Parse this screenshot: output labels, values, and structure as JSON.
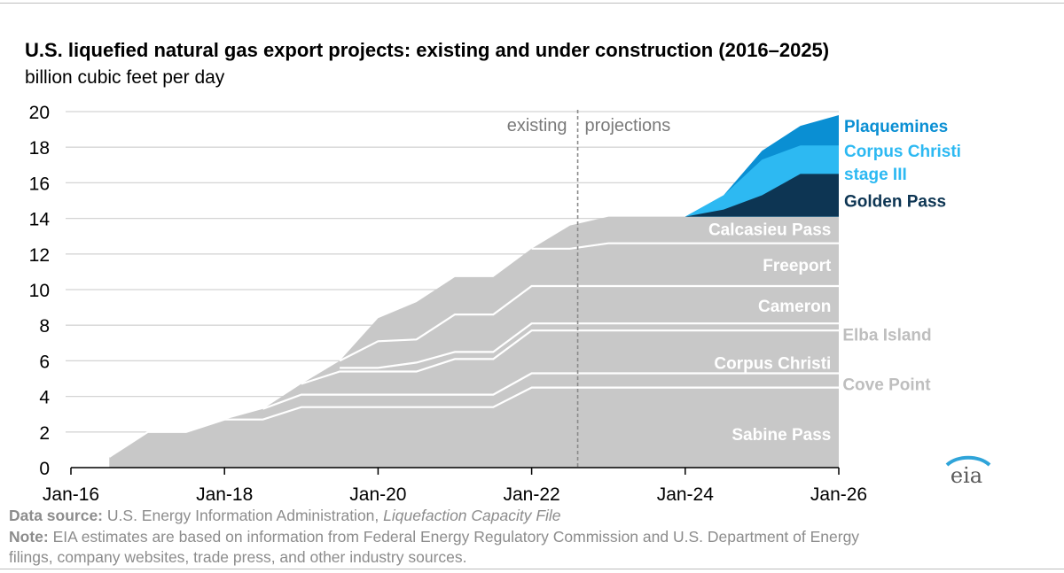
{
  "title": "U.S. liquefied natural gas export projects: existing and under construction (2016–2025)",
  "subtitle": "billion cubic feet per day",
  "footer": {
    "source_label": "Data source:",
    "source_text": "U.S. Energy Information Administration,",
    "source_italic": "Liquefaction Capacity File",
    "note_label": "Note:",
    "note_line1": "EIA estimates are based on information from Federal Energy Regulatory Commission and U.S. Department of Energy",
    "note_line2": "filings, company websites, trade press, and other industry sources."
  },
  "logo_text": "eia",
  "colors": {
    "existing_fill": "#c8c8c8",
    "separator": "#ffffff",
    "golden_pass": "#0d3553",
    "corpus_christi_stage_iii": "#2db9f2",
    "plaquemines": "#0a8fd3",
    "existing_label_gray": "#bebebe",
    "grid": "#d4d4d4"
  },
  "chart_data": {
    "type": "area",
    "stacked": true,
    "title": "U.S. liquefied natural gas export projects: existing and under construction (2016–2025)",
    "ylabel": "billion cubic feet per day",
    "xlabel": "",
    "xlim": [
      2016.0,
      2026.0
    ],
    "ylim": [
      0,
      20
    ],
    "x_ticks": [
      {
        "x": 2016,
        "label": "Jan-16"
      },
      {
        "x": 2018,
        "label": "Jan-18"
      },
      {
        "x": 2020,
        "label": "Jan-20"
      },
      {
        "x": 2022,
        "label": "Jan-22"
      },
      {
        "x": 2024,
        "label": "Jan-24"
      },
      {
        "x": 2026,
        "label": "Jan-26"
      }
    ],
    "y_ticks": [
      0,
      2,
      4,
      6,
      8,
      10,
      12,
      14,
      16,
      18,
      20
    ],
    "grid": true,
    "divider": {
      "x": 2022.6,
      "left_label": "existing",
      "right_label": "projections"
    },
    "existing_total": [
      [
        2016.5,
        0.6
      ],
      [
        2017.0,
        2.0
      ],
      [
        2017.5,
        2.0
      ],
      [
        2018.0,
        2.7
      ],
      [
        2018.5,
        3.3
      ],
      [
        2019.0,
        4.7
      ],
      [
        2019.5,
        6.0
      ],
      [
        2020.0,
        8.4
      ],
      [
        2020.5,
        9.3
      ],
      [
        2021.0,
        10.7
      ],
      [
        2021.5,
        10.7
      ],
      [
        2022.0,
        12.3
      ],
      [
        2022.5,
        13.6
      ],
      [
        2023.0,
        14.1
      ],
      [
        2026.0,
        14.1
      ]
    ],
    "boundaries": [
      {
        "name": "Sabine Pass",
        "top": [
          [
            2016.5,
            0.6
          ],
          [
            2017.0,
            2.0
          ],
          [
            2017.5,
            2.0
          ],
          [
            2018.0,
            2.7
          ],
          [
            2018.5,
            2.7
          ],
          [
            2019.0,
            3.4
          ],
          [
            2021.5,
            3.4
          ],
          [
            2022.0,
            4.5
          ],
          [
            2026.0,
            4.5
          ]
        ]
      },
      {
        "name": "Cove Point",
        "top": [
          [
            2018.5,
            3.3
          ],
          [
            2019.0,
            4.1
          ],
          [
            2021.5,
            4.1
          ],
          [
            2022.0,
            5.3
          ],
          [
            2026.0,
            5.3
          ]
        ]
      },
      {
        "name": "Corpus Christi",
        "top": [
          [
            2019.0,
            4.7
          ],
          [
            2019.5,
            5.4
          ],
          [
            2020.5,
            5.4
          ],
          [
            2021.0,
            6.1
          ],
          [
            2021.5,
            6.1
          ],
          [
            2022.0,
            7.7
          ],
          [
            2026.0,
            7.7
          ]
        ]
      },
      {
        "name": "Elba Island",
        "top": [
          [
            2019.5,
            5.6
          ],
          [
            2020.0,
            5.6
          ],
          [
            2020.5,
            5.9
          ],
          [
            2021.0,
            6.5
          ],
          [
            2021.5,
            6.5
          ],
          [
            2022.0,
            8.1
          ],
          [
            2026.0,
            8.1
          ]
        ]
      },
      {
        "name": "Cameron",
        "top": [
          [
            2019.5,
            6.0
          ],
          [
            2020.0,
            7.1
          ],
          [
            2020.5,
            7.2
          ],
          [
            2021.0,
            8.6
          ],
          [
            2021.5,
            8.6
          ],
          [
            2022.0,
            10.2
          ],
          [
            2026.0,
            10.2
          ]
        ]
      },
      {
        "name": "Freeport",
        "top": [
          [
            2022.0,
            12.3
          ],
          [
            2022.5,
            12.3
          ],
          [
            2023.0,
            12.6
          ],
          [
            2026.0,
            12.6
          ]
        ]
      }
    ],
    "labels": [
      {
        "text": "Sabine Pass",
        "x": 2025.9,
        "y": 1.9,
        "color": "#ffffff"
      },
      {
        "text": "Cove Point",
        "x": 2026.05,
        "y": 4.7,
        "color": "#bebebe"
      },
      {
        "text": "Corpus Christi",
        "x": 2025.9,
        "y": 5.9,
        "color": "#ffffff"
      },
      {
        "text": "Elba Island",
        "x": 2026.05,
        "y": 7.5,
        "color": "#bebebe"
      },
      {
        "text": "Cameron",
        "x": 2025.9,
        "y": 9.1,
        "color": "#ffffff"
      },
      {
        "text": "Freeport",
        "x": 2025.9,
        "y": 11.4,
        "color": "#ffffff"
      },
      {
        "text": "Calcasieu Pass",
        "x": 2025.9,
        "y": 13.4,
        "color": "#ffffff"
      }
    ],
    "series": [
      {
        "name": "Golden Pass",
        "color": "#0d3553",
        "base": 14.1,
        "points": [
          [
            2024.0,
            14.1
          ],
          [
            2024.5,
            14.5
          ],
          [
            2025.0,
            15.3
          ],
          [
            2025.5,
            16.5
          ],
          [
            2026.0,
            16.5
          ]
        ]
      },
      {
        "name": "Corpus Christi stage III",
        "color": "#2db9f2",
        "points": [
          [
            2024.0,
            14.1
          ],
          [
            2024.5,
            15.3
          ],
          [
            2025.0,
            17.3
          ],
          [
            2025.5,
            18.1
          ],
          [
            2026.0,
            18.1
          ]
        ]
      },
      {
        "name": "Plaquemines",
        "color": "#0a8fd3",
        "points": [
          [
            2024.0,
            14.1
          ],
          [
            2024.5,
            15.3
          ],
          [
            2025.0,
            17.8
          ],
          [
            2025.5,
            19.2
          ],
          [
            2026.0,
            19.8
          ]
        ]
      }
    ],
    "legend": [
      {
        "lines": [
          "Plaquemines"
        ],
        "color": "#0a8fd3",
        "y": 19.2
      },
      {
        "lines": [
          "Corpus Christi",
          "stage III"
        ],
        "color": "#2db9f2",
        "y": 17.8
      },
      {
        "lines": [
          "Golden Pass"
        ],
        "color": "#0d3553",
        "y": 15.0
      }
    ]
  }
}
